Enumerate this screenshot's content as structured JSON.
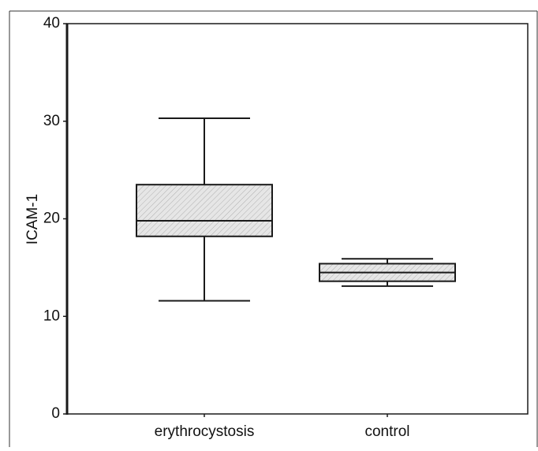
{
  "chart_data": {
    "type": "box",
    "title": "",
    "xlabel": "",
    "ylabel": "ICAM-1",
    "ylim": [
      0,
      40
    ],
    "yticks": [
      0,
      10,
      20,
      30,
      40
    ],
    "grid": false,
    "categories": [
      "erythrocystosis",
      "control"
    ],
    "boxes": [
      {
        "category": "erythrocystosis",
        "whisker_low": 11.6,
        "q1": 18.2,
        "median": 19.8,
        "q3": 23.5,
        "whisker_high": 30.3
      },
      {
        "category": "control",
        "whisker_low": 13.1,
        "q1": 13.6,
        "median": 14.5,
        "q3": 15.4,
        "whisker_high": 15.9
      }
    ],
    "colors": {
      "box_fill": "#e6e6e6",
      "hatch": "#b0b0b0",
      "stroke": "#1a1a1a"
    }
  }
}
